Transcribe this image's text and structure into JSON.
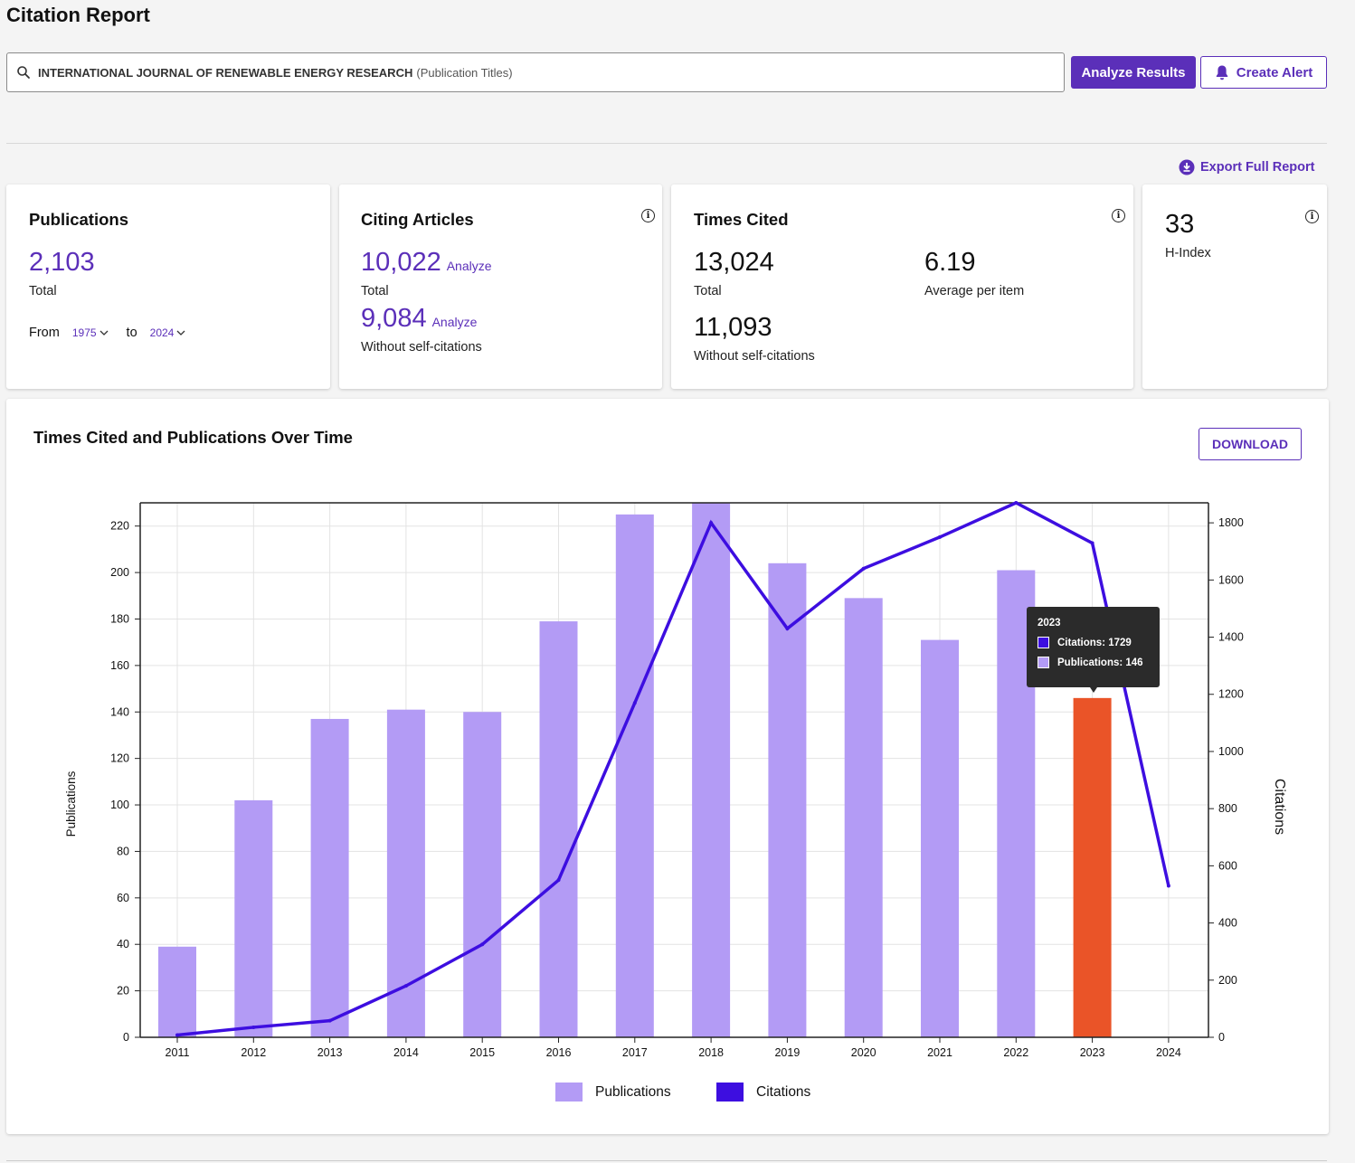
{
  "header": {
    "title": "Citation Report"
  },
  "search": {
    "query": "INTERNATIONAL JOURNAL OF RENEWABLE ENERGY RESEARCH",
    "field": "(Publication Titles)"
  },
  "toolbar": {
    "analyze_label": "Analyze Results",
    "alert_label": "Create Alert",
    "export_label": "Export Full Report"
  },
  "publications": {
    "title": "Publications",
    "total": "2,103",
    "total_label": "Total",
    "from_label": "From",
    "from_value": "1975",
    "to_label": "to",
    "to_value": "2024"
  },
  "citing": {
    "title": "Citing Articles",
    "total": "10,022",
    "total_label": "Total",
    "without": "9,084",
    "without_label": "Without self-citations",
    "analyze_label": "Analyze"
  },
  "times_cited": {
    "title": "Times Cited",
    "total": "13,024",
    "total_label": "Total",
    "without": "11,093",
    "without_label": "Without self-citations",
    "average": "6.19",
    "average_label": "Average per item"
  },
  "hindex": {
    "value": "33",
    "label": "H-Index"
  },
  "chart_section": {
    "title": "Times Cited and Publications Over Time",
    "download_label": "DOWNLOAD"
  },
  "tooltip": {
    "year": "2023",
    "citations_text": "Citations: 1729",
    "publications_text": "Publications: 146"
  },
  "colors": {
    "accent": "#5b2fb9",
    "publications": "#b39bf5",
    "citations": "#3d0ee0",
    "highlight": "#ea5428"
  },
  "chart_data": {
    "type": "bar",
    "categories": [
      "2011",
      "2012",
      "2013",
      "2014",
      "2015",
      "2016",
      "2017",
      "2018",
      "2019",
      "2020",
      "2021",
      "2022",
      "2023",
      "2024"
    ],
    "series": [
      {
        "name": "Publications",
        "type": "bar",
        "axis": "left",
        "values": [
          39,
          102,
          137,
          141,
          140,
          179,
          225,
          230,
          204,
          189,
          171,
          201,
          146,
          0
        ]
      },
      {
        "name": "Citations",
        "type": "line",
        "axis": "right",
        "values": [
          8,
          35,
          58,
          180,
          325,
          550,
          1170,
          1800,
          1430,
          1640,
          1750,
          1870,
          1729,
          530
        ]
      }
    ],
    "highlighted_category": "2023",
    "ylabel": "Publications",
    "y2label": "Citations",
    "ylim": [
      0,
      230
    ],
    "y2lim": [
      0,
      1870
    ],
    "yticks": [
      0,
      20,
      40,
      60,
      80,
      100,
      120,
      140,
      160,
      180,
      200,
      220
    ],
    "y2ticks": [
      0,
      200,
      400,
      600,
      800,
      1000,
      1200,
      1400,
      1600,
      1800
    ],
    "grid": true,
    "legend": "bottom-center"
  }
}
